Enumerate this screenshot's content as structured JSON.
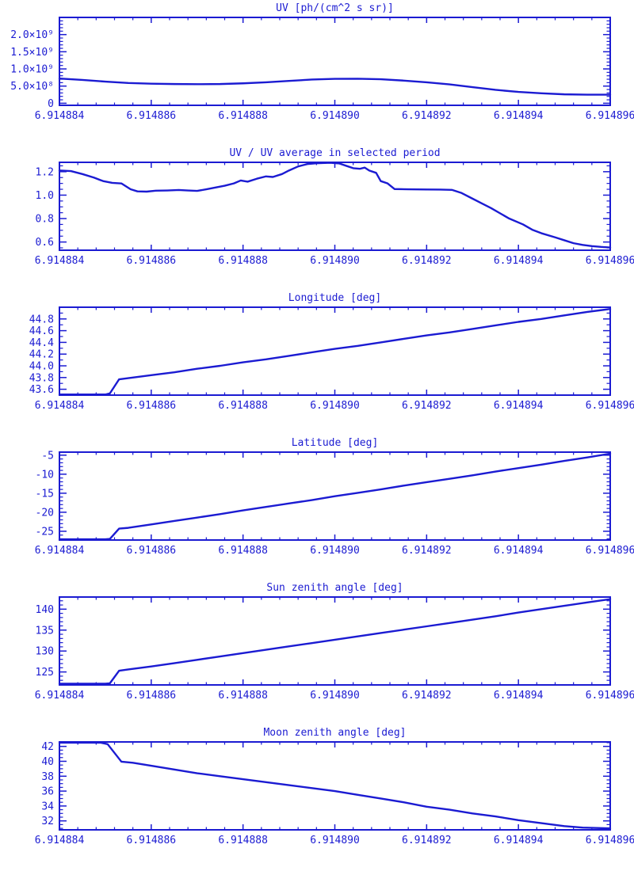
{
  "page": {
    "background": "#ffffff",
    "accent_color": "#1b1bd2"
  },
  "chart_data": [
    {
      "id": "uv",
      "type": "line",
      "title": "UV [ph/(cm^2 s sr)]",
      "xlim": [
        6.914884,
        6.914896
      ],
      "ylim": [
        -60000000,
        2500000000
      ],
      "grid": false,
      "xticks": {
        "values": [
          6.914884,
          6.914886,
          6.914888,
          6.91489,
          6.914892,
          6.914894,
          6.914896
        ],
        "labels": [
          "6.914884",
          "6.914886",
          "6.914888",
          "6.914890",
          "6.914892",
          "6.914894",
          "6.914896"
        ],
        "minor": 4
      },
      "yticks": {
        "values": [
          0,
          500000000,
          1000000000,
          1500000000,
          2000000000
        ],
        "labels": [
          "0",
          "5.0×10⁸",
          "1.0×10⁹",
          "1.5×10⁹",
          "2.0×10⁹"
        ],
        "minor": 4
      },
      "x": [
        6.914884,
        6.9148845,
        6.914885,
        6.9148855,
        6.914886,
        6.9148865,
        6.914887,
        6.9148875,
        6.914888,
        6.9148885,
        6.914889,
        6.9148895,
        6.91489,
        6.9148905,
        6.914891,
        6.9148915,
        6.914892,
        6.9148925,
        6.914893,
        6.9148935,
        6.914894,
        6.9148945,
        6.914895,
        6.9148955,
        6.914896
      ],
      "y": [
        720000000,
        680000000,
        630000000,
        590000000,
        570000000,
        560000000,
        555000000,
        560000000,
        580000000,
        610000000,
        650000000,
        690000000,
        710000000,
        715000000,
        700000000,
        660000000,
        610000000,
        550000000,
        470000000,
        390000000,
        330000000,
        290000000,
        260000000,
        250000000,
        250000000
      ]
    },
    {
      "id": "uv-ratio",
      "type": "line",
      "title": "UV / UV average in selected period",
      "xlim": [
        6.914884,
        6.914896
      ],
      "ylim": [
        0.53,
        1.28
      ],
      "grid": false,
      "xticks": {
        "values": [
          6.914884,
          6.914886,
          6.914888,
          6.91489,
          6.914892,
          6.914894,
          6.914896
        ],
        "labels": [
          "6.914884",
          "6.914886",
          "6.914888",
          "6.914890",
          "6.914892",
          "6.914894",
          "6.914896"
        ],
        "minor": 4
      },
      "yticks": {
        "values": [
          0.6,
          0.8,
          1.0,
          1.2
        ],
        "labels": [
          "0.6",
          "0.8",
          "1.0",
          "1.2"
        ],
        "minor": 3
      },
      "x": [
        6.914884,
        6.91488425,
        6.9148845,
        6.91488475,
        6.91488495,
        6.91488515,
        6.91488535,
        6.91488555,
        6.9148857,
        6.9148859,
        6.9148861,
        6.91488635,
        6.9148866,
        6.9148868,
        6.914887,
        6.9148872,
        6.9148874,
        6.9148876,
        6.9148878,
        6.91488795,
        6.9148881,
        6.9148883,
        6.9148885,
        6.91488865,
        6.91488885,
        6.914889,
        6.9148892,
        6.9148894,
        6.9148896,
        6.9148899,
        6.9148901,
        6.91489025,
        6.9148904,
        6.91489055,
        6.91489065,
        6.91489075,
        6.9148909,
        6.914891,
        6.91489115,
        6.9148913,
        6.9148916,
        6.914892,
        6.9148923,
        6.91489255,
        6.91489275,
        6.914893,
        6.9148932,
        6.9148934,
        6.9148936,
        6.9148938,
        6.9148941,
        6.9148943,
        6.9148945,
        6.9148948,
        6.914895,
        6.9148952,
        6.9148954,
        6.9148956,
        6.9148958,
        6.914896
      ],
      "y": [
        1.21,
        1.205,
        1.18,
        1.15,
        1.12,
        1.105,
        1.1,
        1.05,
        1.032,
        1.03,
        1.038,
        1.04,
        1.044,
        1.04,
        1.036,
        1.05,
        1.065,
        1.08,
        1.1,
        1.125,
        1.115,
        1.14,
        1.16,
        1.155,
        1.18,
        1.21,
        1.245,
        1.265,
        1.272,
        1.276,
        1.27,
        1.25,
        1.23,
        1.225,
        1.235,
        1.21,
        1.19,
        1.12,
        1.1,
        1.052,
        1.05,
        1.048,
        1.047,
        1.045,
        1.02,
        0.97,
        0.93,
        0.89,
        0.845,
        0.8,
        0.75,
        0.705,
        0.675,
        0.64,
        0.615,
        0.59,
        0.575,
        0.565,
        0.558,
        0.553
      ]
    },
    {
      "id": "longitude",
      "type": "line",
      "title": "Longitude [deg]",
      "xlim": [
        6.914884,
        6.914896
      ],
      "ylim": [
        43.5,
        45.0
      ],
      "grid": false,
      "xticks": {
        "values": [
          6.914884,
          6.914886,
          6.914888,
          6.91489,
          6.914892,
          6.914894,
          6.914896
        ],
        "labels": [
          "6.914884",
          "6.914886",
          "6.914888",
          "6.914890",
          "6.914892",
          "6.914894",
          "6.914896"
        ],
        "minor": 4
      },
      "yticks": {
        "values": [
          43.6,
          43.8,
          44.0,
          44.2,
          44.4,
          44.6,
          44.8
        ],
        "labels": [
          "43.6",
          "43.8",
          "44.0",
          "44.2",
          "44.4",
          "44.6",
          "44.8"
        ],
        "minor": 1
      },
      "x": [
        6.914884,
        6.9148846,
        6.914885,
        6.9148851,
        6.9148853,
        6.9148855,
        6.914886,
        6.9148865,
        6.914887,
        6.9148875,
        6.914888,
        6.9148885,
        6.914889,
        6.9148895,
        6.91489,
        6.9148905,
        6.914891,
        6.9148915,
        6.914892,
        6.9148925,
        6.914893,
        6.9148935,
        6.914894,
        6.9148945,
        6.914895,
        6.9148955,
        6.914896
      ],
      "y": [
        43.51,
        43.51,
        43.51,
        43.53,
        43.77,
        43.79,
        43.84,
        43.89,
        43.95,
        44.0,
        44.06,
        44.11,
        44.17,
        44.23,
        44.29,
        44.34,
        44.4,
        44.46,
        44.52,
        44.57,
        44.63,
        44.69,
        44.75,
        44.8,
        44.86,
        44.92,
        44.97
      ]
    },
    {
      "id": "latitude",
      "type": "line",
      "title": "Latitude [deg]",
      "xlim": [
        6.914884,
        6.914896
      ],
      "ylim": [
        -27.3,
        -4.2
      ],
      "grid": false,
      "xticks": {
        "values": [
          6.914884,
          6.914886,
          6.914888,
          6.91489,
          6.914892,
          6.914894,
          6.914896
        ],
        "labels": [
          "6.914884",
          "6.914886",
          "6.914888",
          "6.914890",
          "6.914892",
          "6.914894",
          "6.914896"
        ],
        "minor": 4
      },
      "yticks": {
        "values": [
          -25,
          -20,
          -15,
          -10,
          -5
        ],
        "labels": [
          "-25",
          "-20",
          "-15",
          "-10",
          "-5"
        ],
        "minor": 4
      },
      "x": [
        6.914884,
        6.9148846,
        6.914885,
        6.9148851,
        6.9148853,
        6.9148855,
        6.914886,
        6.9148865,
        6.914887,
        6.9148875,
        6.914888,
        6.9148885,
        6.914889,
        6.9148895,
        6.91489,
        6.9148905,
        6.914891,
        6.9148915,
        6.914892,
        6.9148925,
        6.914893,
        6.9148935,
        6.914894,
        6.9148945,
        6.914895,
        6.9148955,
        6.914896
      ],
      "y": [
        -27.1,
        -27.1,
        -27.1,
        -27.0,
        -24.3,
        -24.1,
        -23.2,
        -22.3,
        -21.4,
        -20.5,
        -19.5,
        -18.6,
        -17.7,
        -16.8,
        -15.8,
        -14.9,
        -14.0,
        -13.0,
        -12.1,
        -11.2,
        -10.3,
        -9.3,
        -8.4,
        -7.5,
        -6.5,
        -5.6,
        -4.6
      ]
    },
    {
      "id": "sun-zenith",
      "type": "line",
      "title": "Sun zenith angle [deg]",
      "xlim": [
        6.914884,
        6.914896
      ],
      "ylim": [
        121.9,
        142.9
      ],
      "grid": false,
      "xticks": {
        "values": [
          6.914884,
          6.914886,
          6.914888,
          6.91489,
          6.914892,
          6.914894,
          6.914896
        ],
        "labels": [
          "6.914884",
          "6.914886",
          "6.914888",
          "6.914890",
          "6.914892",
          "6.914894",
          "6.914896"
        ],
        "minor": 4
      },
      "yticks": {
        "values": [
          125,
          130,
          135,
          140
        ],
        "labels": [
          "125",
          "130",
          "135",
          "140"
        ],
        "minor": 4
      },
      "x": [
        6.914884,
        6.9148846,
        6.914885,
        6.9148851,
        6.9148853,
        6.9148855,
        6.914886,
        6.9148865,
        6.914887,
        6.9148875,
        6.914888,
        6.9148885,
        6.914889,
        6.9148895,
        6.91489,
        6.9148905,
        6.914891,
        6.9148915,
        6.914892,
        6.9148925,
        6.914893,
        6.9148935,
        6.914894,
        6.9148945,
        6.914895,
        6.9148955,
        6.914896
      ],
      "y": [
        122.2,
        122.2,
        122.2,
        122.3,
        125.3,
        125.6,
        126.3,
        127.1,
        127.9,
        128.7,
        129.5,
        130.3,
        131.1,
        131.9,
        132.7,
        133.5,
        134.3,
        135.1,
        135.9,
        136.7,
        137.5,
        138.3,
        139.2,
        140.0,
        140.8,
        141.6,
        142.4
      ]
    },
    {
      "id": "moon-zenith",
      "type": "line",
      "title": "Moon zenith angle [deg]",
      "xlim": [
        6.914884,
        6.914896
      ],
      "ylim": [
        30.8,
        42.6
      ],
      "grid": false,
      "xticks": {
        "values": [
          6.914884,
          6.914886,
          6.914888,
          6.91489,
          6.914892,
          6.914894,
          6.914896
        ],
        "labels": [
          "6.914884",
          "6.914886",
          "6.914888",
          "6.914890",
          "6.914892",
          "6.914894",
          "6.914896"
        ],
        "minor": 4
      },
      "yticks": {
        "values": [
          32,
          34,
          36,
          38,
          40,
          42
        ],
        "labels": [
          "32",
          "34",
          "36",
          "38",
          "40",
          "42"
        ],
        "minor": 3
      },
      "x": [
        6.914884,
        6.9148845,
        6.9148849,
        6.91488505,
        6.91488535,
        6.9148856,
        6.914886,
        6.9148865,
        6.914887,
        6.9148875,
        6.914888,
        6.9148885,
        6.914889,
        6.9148895,
        6.91489,
        6.9148905,
        6.914891,
        6.9148915,
        6.914892,
        6.9148925,
        6.914893,
        6.9148935,
        6.914894,
        6.9148945,
        6.914895,
        6.9148954,
        6.914896
      ],
      "y": [
        42.5,
        42.5,
        42.5,
        42.3,
        39.95,
        39.8,
        39.4,
        38.9,
        38.4,
        38.0,
        37.6,
        37.2,
        36.8,
        36.4,
        36.0,
        35.5,
        35.0,
        34.5,
        33.9,
        33.5,
        33.0,
        32.6,
        32.1,
        31.7,
        31.3,
        31.1,
        31.0
      ]
    }
  ]
}
